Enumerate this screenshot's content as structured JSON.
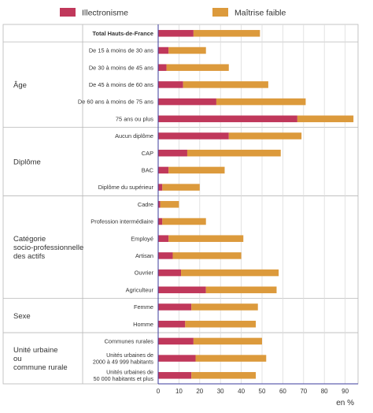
{
  "chart_data": {
    "type": "bar",
    "orientation": "horizontal",
    "stacked": true,
    "legend": {
      "placement": "top"
    },
    "unit_label": "en %",
    "xlim": [
      0,
      95
    ],
    "ticks": [
      0,
      10,
      20,
      30,
      40,
      50,
      60,
      70,
      80,
      90
    ],
    "grid": true,
    "series": [
      {
        "name": "Illectronisme",
        "color": "#c0385b"
      },
      {
        "name": "Maîtrise faible",
        "color": "#dc9a3c"
      }
    ],
    "groups": [
      {
        "label": [
          "Total Hauts-de-France"
        ],
        "total_row": true,
        "rows": [
          {
            "label": [
              "Total Hauts-de-France"
            ],
            "values": [
              17,
              32
            ]
          }
        ]
      },
      {
        "label": [
          "Âge"
        ],
        "rows": [
          {
            "label": [
              "De 15 à moins de 30 ans"
            ],
            "values": [
              5,
              18
            ]
          },
          {
            "label": [
              "De 30 à moins de 45 ans"
            ],
            "values": [
              4,
              30
            ]
          },
          {
            "label": [
              "De 45 à moins de 60 ans"
            ],
            "values": [
              12,
              41
            ]
          },
          {
            "label": [
              "De 60 ans à moins de 75 ans"
            ],
            "values": [
              28,
              43
            ]
          },
          {
            "label": [
              "75 ans ou plus"
            ],
            "values": [
              67,
              27
            ]
          }
        ]
      },
      {
        "label": [
          "Diplôme"
        ],
        "rows": [
          {
            "label": [
              "Aucun diplôme"
            ],
            "values": [
              34,
              35
            ]
          },
          {
            "label": [
              "CAP"
            ],
            "values": [
              14,
              45
            ]
          },
          {
            "label": [
              "BAC"
            ],
            "values": [
              5,
              27
            ]
          },
          {
            "label": [
              "Diplôme du supérieur"
            ],
            "values": [
              2,
              18
            ]
          }
        ]
      },
      {
        "label": [
          "Catégorie",
          "socio-professionnelle",
          "des actifs"
        ],
        "rows": [
          {
            "label": [
              "Cadre"
            ],
            "values": [
              1,
              9
            ]
          },
          {
            "label": [
              "Profession intermédiaire"
            ],
            "values": [
              2,
              21
            ]
          },
          {
            "label": [
              "Employé"
            ],
            "values": [
              5,
              36
            ]
          },
          {
            "label": [
              "Artisan"
            ],
            "values": [
              7,
              33
            ]
          },
          {
            "label": [
              "Ouvrier"
            ],
            "values": [
              11,
              47
            ]
          },
          {
            "label": [
              "Agriculteur"
            ],
            "values": [
              23,
              34
            ]
          }
        ]
      },
      {
        "label": [
          "Sexe"
        ],
        "rows": [
          {
            "label": [
              "Femme"
            ],
            "values": [
              16,
              32
            ]
          },
          {
            "label": [
              "Homme"
            ],
            "values": [
              13,
              34
            ]
          }
        ]
      },
      {
        "label": [
          "Unité urbaine",
          "ou",
          "commune rurale"
        ],
        "rows": [
          {
            "label": [
              "Communes rurales"
            ],
            "values": [
              17,
              33
            ]
          },
          {
            "label": [
              "Unités urbaines de",
              "2000 à 49 999 habitants"
            ],
            "values": [
              18,
              34
            ]
          },
          {
            "label": [
              "Unités urbaines de",
              "50 000 habitants et plus"
            ],
            "values": [
              16,
              31
            ]
          }
        ]
      }
    ]
  }
}
